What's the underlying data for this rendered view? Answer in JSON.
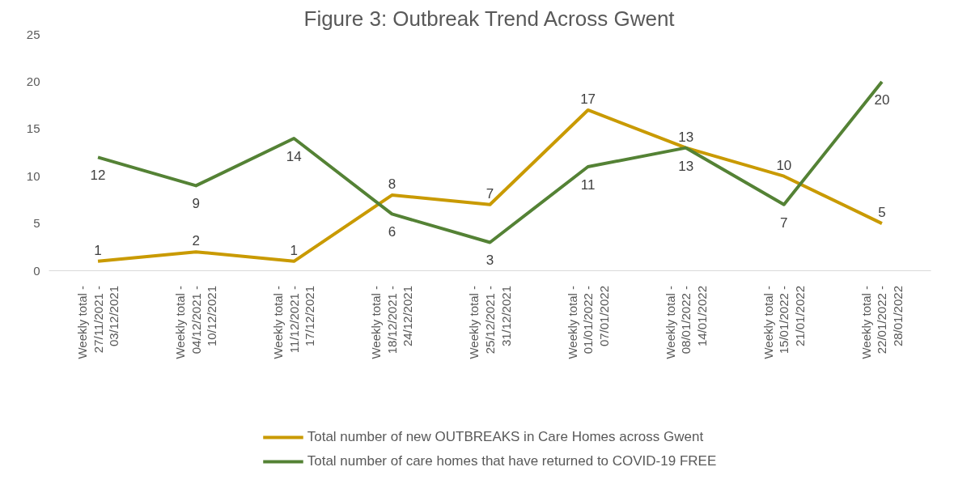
{
  "chart_data": {
    "type": "line",
    "title": "Figure 3: Outbreak Trend Across Gwent",
    "categories": [
      "Weekly total -\n27/11/2021 -\n03/12/2021",
      "Weekly total -\n04/12/2021 -\n10/12/2021",
      "Weekly total -\n11/12/2021 -\n17/12/2021",
      "Weekly total -\n18/12/2021 -\n24/12/2021",
      "Weekly total -\n25/12/2021 -\n31/12/2021",
      "Weekly total -\n01/01/2022 -\n07/01/2022",
      "Weekly total -\n08/01/2022 -\n14/01/2022",
      "Weekly total -\n15/01/2022 -\n21/01/2022",
      "Weekly total -\n22/01/2022 -\n28/01/2022"
    ],
    "series": [
      {
        "name": "Total number of new OUTBREAKS in Care Homes across Gwent",
        "color": "#c99a00",
        "values": [
          1,
          2,
          1,
          8,
          7,
          17,
          13,
          10,
          5
        ]
      },
      {
        "name": "Total number of care homes that have returned to COVID-19 FREE",
        "color": "#548235",
        "values": [
          12,
          9,
          14,
          6,
          3,
          11,
          13,
          7,
          20
        ]
      }
    ],
    "ylim": [
      0,
      25
    ],
    "yticks": [
      0,
      5,
      10,
      15,
      20,
      25
    ],
    "grid": false,
    "legend": "bottom",
    "data_labels": true,
    "marker": "none",
    "line_style": "solid"
  }
}
